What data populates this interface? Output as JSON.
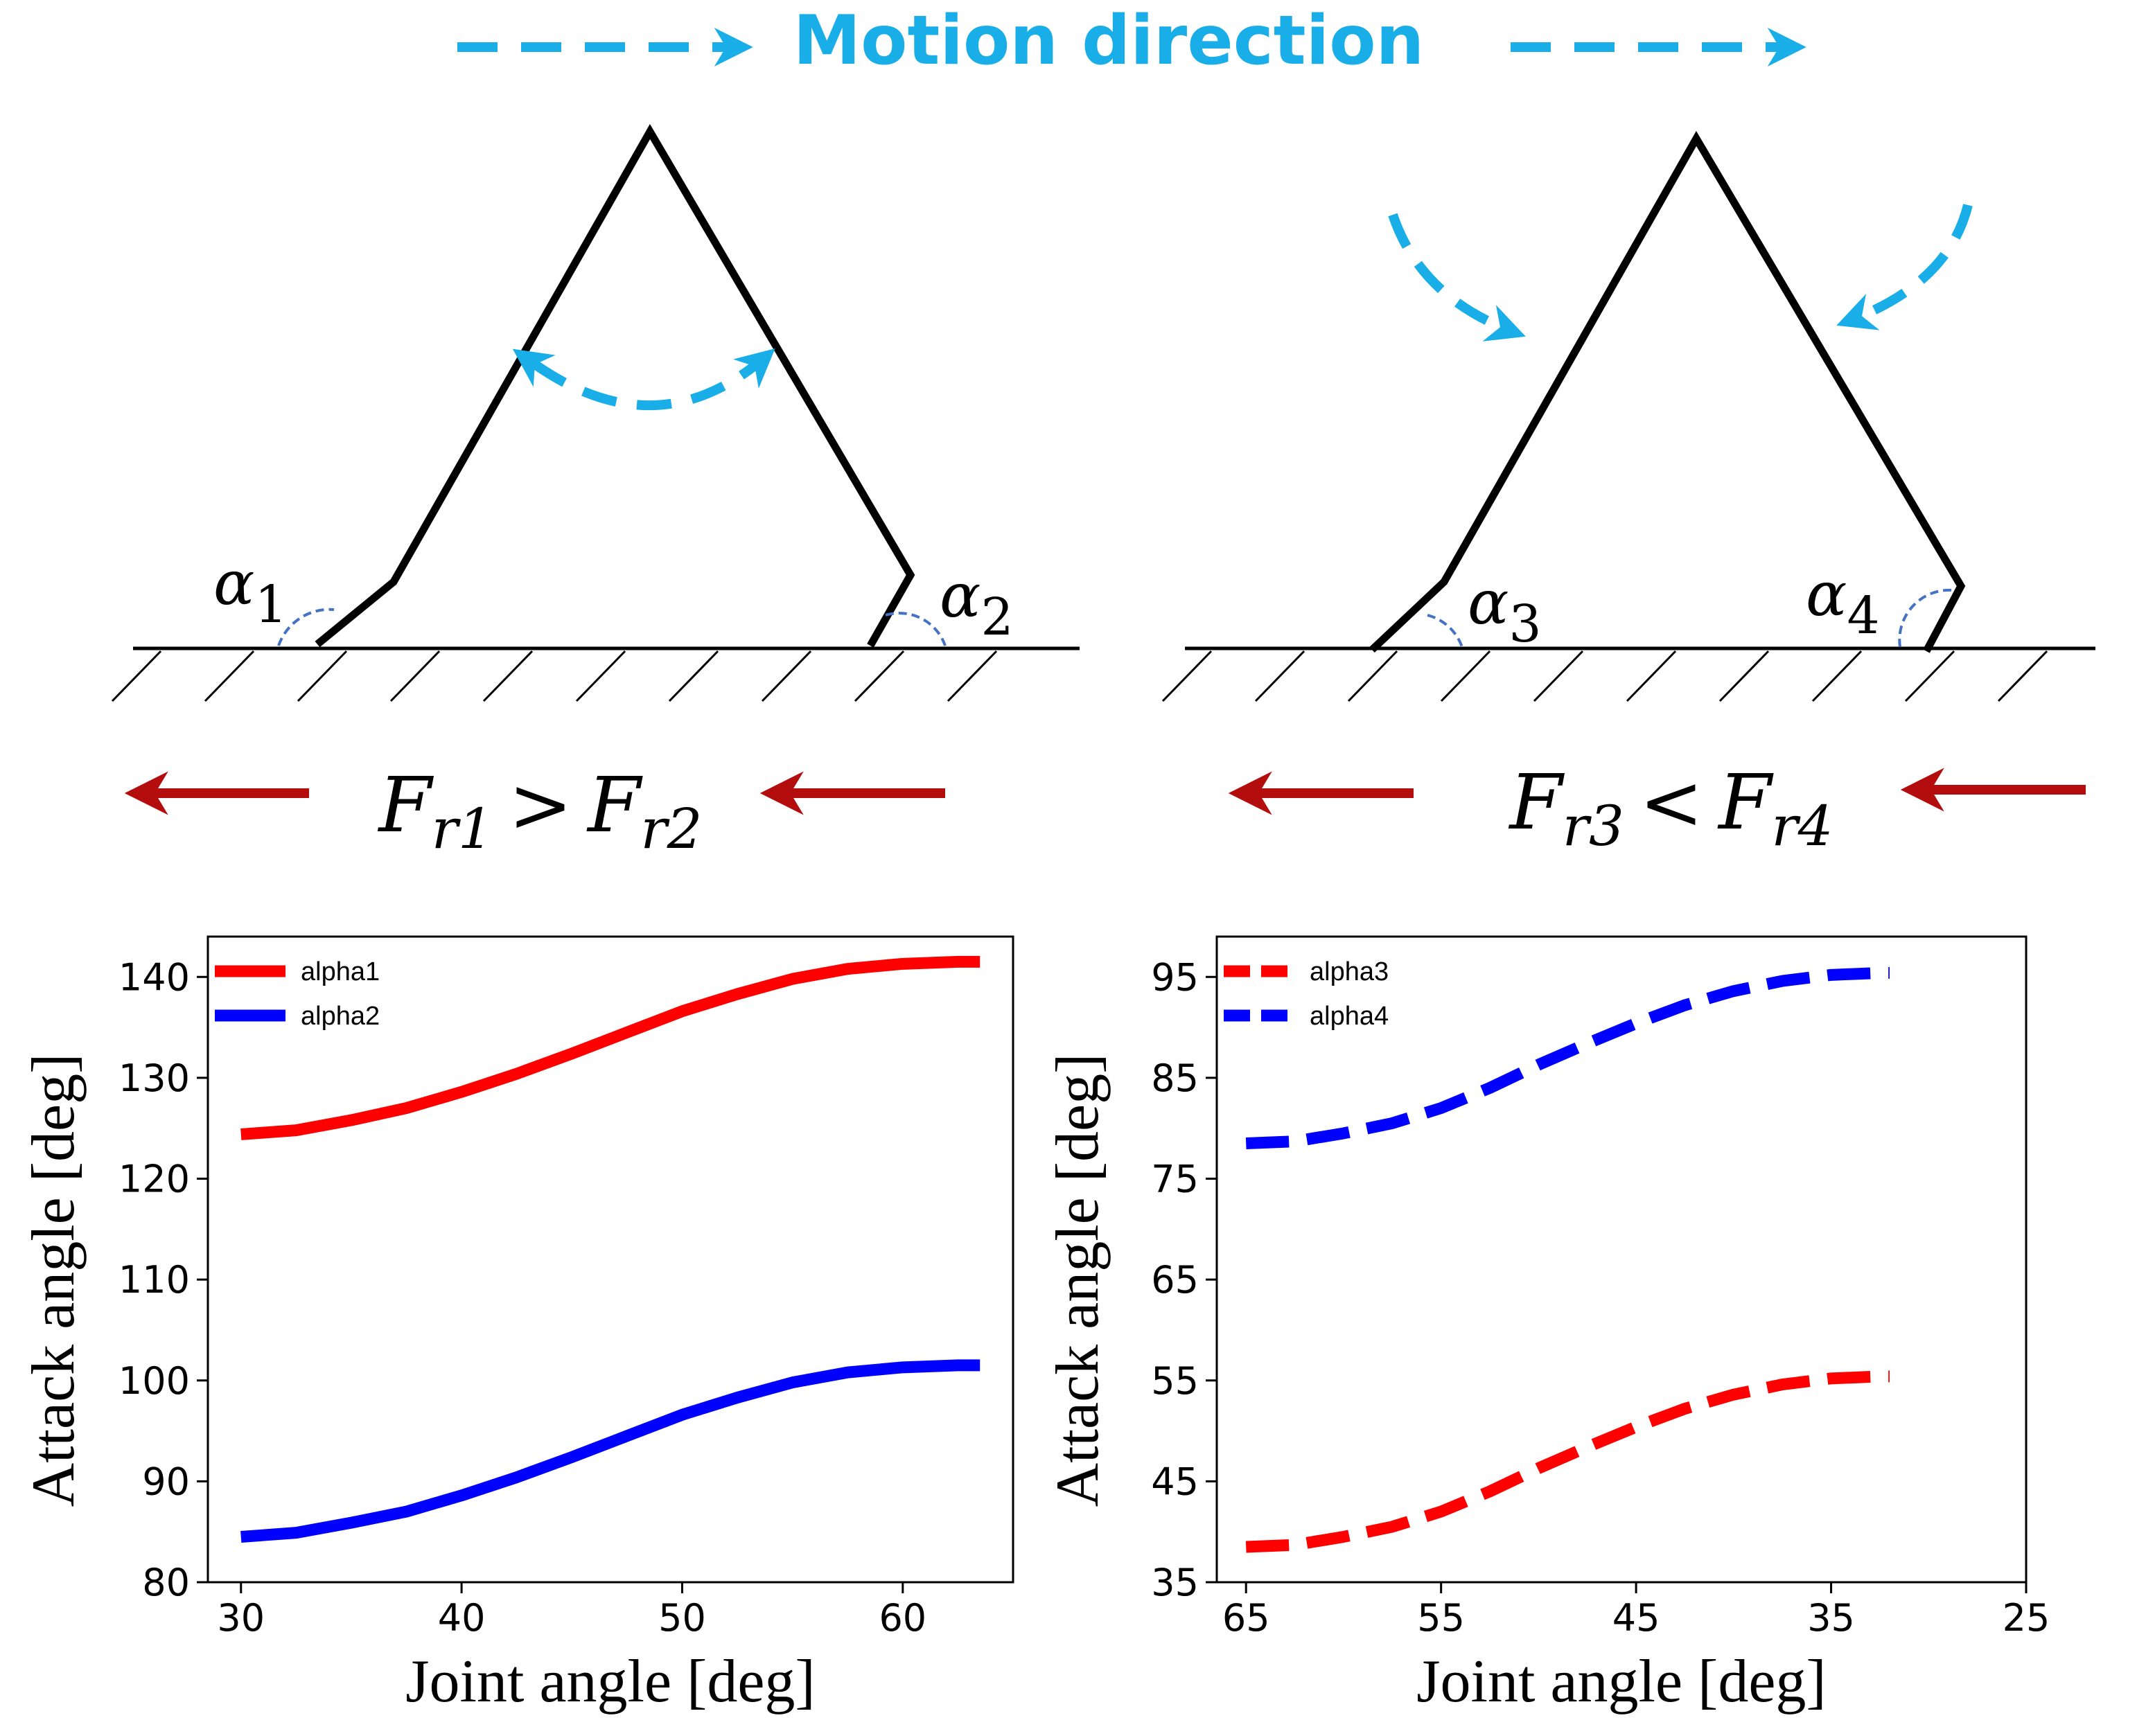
{
  "colors": {
    "motion": "#1aaee8",
    "force": "#b30d0d",
    "structure": "#000000",
    "angle_arc": "#4472c4",
    "series_red": "#ff0000",
    "series_blue": "#0000ff"
  },
  "header": {
    "title": "Motion direction"
  },
  "left_diagram": {
    "alpha_a": {
      "base": "α",
      "sub": "1"
    },
    "alpha_b": {
      "base": "α",
      "sub": "2"
    },
    "force": {
      "f1": "F",
      "s1": "r1",
      "op": ">",
      "f2": "F",
      "s2": "r2"
    }
  },
  "right_diagram": {
    "alpha_a": {
      "base": "α",
      "sub": "3"
    },
    "alpha_b": {
      "base": "α",
      "sub": "4"
    },
    "force": {
      "f1": "F",
      "s1": "r3",
      "op": "<",
      "f2": "F",
      "s2": "r4"
    }
  },
  "chart_data": [
    {
      "type": "line",
      "xlabel": "Joint angle [deg]",
      "ylabel": "Attack angle [deg]",
      "xlim": [
        28.5,
        65
      ],
      "ylim": [
        80,
        144
      ],
      "xticks": [
        30,
        40,
        50,
        60
      ],
      "yticks": [
        80,
        90,
        100,
        110,
        120,
        130,
        140
      ],
      "x_reversed": false,
      "legend": "top-left",
      "series": [
        {
          "name": "alpha1",
          "color": "#ff0000",
          "dashed": false,
          "x": [
            30,
            32.5,
            35,
            37.5,
            40,
            42.5,
            45,
            47.5,
            50,
            52.5,
            55,
            57.5,
            60,
            62.5,
            63.5
          ],
          "y": [
            124.4,
            124.8,
            125.8,
            127.0,
            128.6,
            130.4,
            132.4,
            134.5,
            136.6,
            138.3,
            139.8,
            140.8,
            141.3,
            141.5,
            141.5
          ]
        },
        {
          "name": "alpha2",
          "color": "#0000ff",
          "dashed": false,
          "x": [
            30,
            32.5,
            35,
            37.5,
            40,
            42.5,
            45,
            47.5,
            50,
            52.5,
            55,
            57.5,
            60,
            62.5,
            63.5
          ],
          "y": [
            84.5,
            84.9,
            85.9,
            87.0,
            88.6,
            90.4,
            92.4,
            94.5,
            96.6,
            98.3,
            99.8,
            100.8,
            101.3,
            101.5,
            101.5
          ]
        }
      ]
    },
    {
      "type": "line",
      "xlabel": "Joint angle [deg]",
      "ylabel": "Attack angle [deg]",
      "xlim": [
        66.5,
        25
      ],
      "ylim": [
        35,
        99
      ],
      "xticks": [
        65,
        55,
        45,
        35,
        25
      ],
      "yticks": [
        35,
        45,
        55,
        65,
        75,
        85,
        95
      ],
      "x_reversed": true,
      "legend": "top-left",
      "series": [
        {
          "name": "alpha3",
          "color": "#ff0000",
          "dashed": true,
          "x": [
            65,
            62.5,
            60,
            57.5,
            55,
            52.5,
            50,
            47.5,
            45,
            42.5,
            40,
            37.5,
            35,
            32.5,
            32
          ],
          "y": [
            38.5,
            38.7,
            39.5,
            40.5,
            42.0,
            44.0,
            46.3,
            48.4,
            50.4,
            52.2,
            53.6,
            54.6,
            55.2,
            55.4,
            55.4
          ]
        },
        {
          "name": "alpha4",
          "color": "#0000ff",
          "dashed": true,
          "x": [
            65,
            62.5,
            60,
            57.5,
            55,
            52.5,
            50,
            47.5,
            45,
            42.5,
            40,
            37.5,
            35,
            32.5,
            32
          ],
          "y": [
            78.5,
            78.7,
            79.5,
            80.5,
            82.0,
            84.0,
            86.3,
            88.4,
            90.4,
            92.2,
            93.6,
            94.6,
            95.2,
            95.4,
            95.4
          ]
        }
      ]
    }
  ]
}
